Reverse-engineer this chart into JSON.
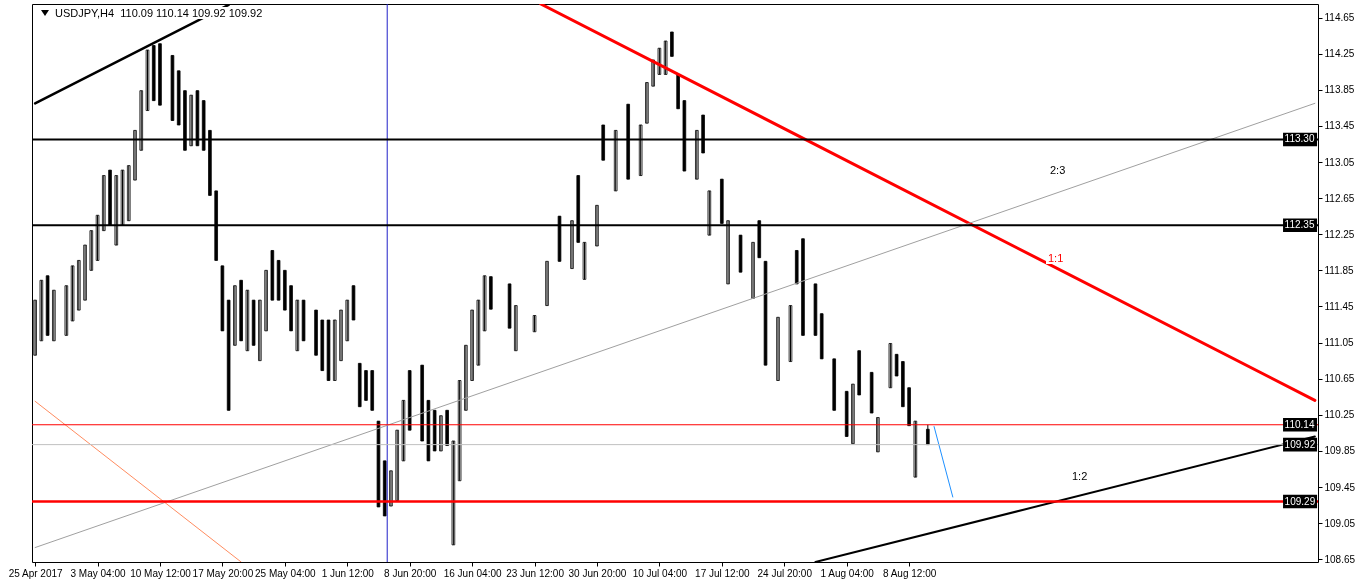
{
  "chart_data": {
    "type": "candlestick",
    "title": "USDJPY,H4  110.09 110.14 109.92 109.92",
    "color": "#000000",
    "categories": [
      "25 Apr 2017",
      null,
      null,
      null,
      null,
      null,
      null,
      null,
      null,
      null,
      "3 May 04:00",
      null,
      null,
      null,
      null,
      null,
      null,
      null,
      null,
      null,
      "10 May 12:00",
      null,
      null,
      null,
      null,
      null,
      null,
      null,
      null,
      null,
      "17 May 20:00",
      null,
      null,
      null,
      null,
      null,
      null,
      null,
      null,
      null,
      "25 May 04:00",
      null,
      null,
      null,
      null,
      null,
      null,
      null,
      null,
      null,
      "1 Jun 12:00",
      null,
      null,
      null,
      null,
      null,
      null,
      null,
      null,
      null,
      "8 Jun 20:00",
      null,
      null,
      null,
      null,
      null,
      null,
      null,
      null,
      null,
      "16 Jun 04:00",
      null,
      null,
      null,
      null,
      null,
      null,
      null,
      null,
      null,
      "23 Jun 12:00",
      null,
      null,
      null,
      null,
      null,
      null,
      null,
      null,
      null,
      "30 Jun 20:00",
      null,
      null,
      null,
      null,
      null,
      null,
      null,
      null,
      null,
      "10 Jul 04:00",
      null,
      null,
      null,
      null,
      null,
      null,
      null,
      null,
      null,
      "17 Jul 12:00",
      null,
      null,
      null,
      null,
      null,
      null,
      null,
      null,
      null,
      "24 Jul 20:00",
      null,
      null,
      null,
      null,
      null,
      null,
      null,
      null,
      null,
      "1 Aug 04:00",
      null,
      null,
      null,
      null,
      null,
      null,
      null,
      null,
      null,
      "8 Aug 12:00",
      null,
      null,
      null,
      null,
      null,
      null,
      null,
      null,
      null,
      null,
      null,
      null,
      null,
      null,
      null,
      null,
      null,
      null,
      null,
      null,
      null,
      null,
      null,
      null,
      null,
      null,
      null,
      null,
      null,
      null,
      null,
      null,
      null,
      null,
      null,
      null,
      null,
      null,
      null,
      null,
      null,
      null,
      null,
      null,
      null,
      null,
      null,
      null,
      null,
      null,
      null,
      null,
      null,
      null,
      null,
      null,
      null,
      null,
      null,
      null,
      null,
      null,
      null,
      null,
      null
    ],
    "ohlc": [
      [
        110.91,
        111.52,
        110.91,
        111.52
      ],
      [
        111.07,
        111.74,
        111.07,
        111.74
      ],
      [
        111.79,
        111.79,
        111.13,
        111.13
      ],
      [
        111.07,
        111.63,
        111.07,
        111.63
      ],
      null,
      [
        111.13,
        111.68,
        111.13,
        111.68
      ],
      [
        111.29,
        111.9,
        111.29,
        111.9
      ],
      [
        111.41,
        111.96,
        111.41,
        111.96
      ],
      [
        111.52,
        112.13,
        111.52,
        112.13
      ],
      [
        111.85,
        112.29,
        111.85,
        112.29
      ],
      [
        111.96,
        112.46,
        111.96,
        112.46
      ],
      [
        112.29,
        112.9,
        112.29,
        112.9
      ],
      [
        112.96,
        112.96,
        112.35,
        112.35
      ],
      [
        112.13,
        112.9,
        112.13,
        112.9
      ],
      [
        112.35,
        112.96,
        112.35,
        112.96
      ],
      [
        112.4,
        113.01,
        112.4,
        113.01
      ],
      [
        112.85,
        113.4,
        112.85,
        113.4
      ],
      [
        113.18,
        113.84,
        113.18,
        113.84
      ],
      [
        113.62,
        114.29,
        113.62,
        114.29
      ],
      [
        114.34,
        114.34,
        113.73,
        113.73
      ],
      [
        114.36,
        114.36,
        113.68,
        113.68
      ],
      null,
      [
        114.23,
        114.23,
        113.51,
        113.51
      ],
      [
        114.06,
        114.06,
        113.46,
        113.46
      ],
      [
        113.84,
        113.84,
        113.18,
        113.18
      ],
      [
        113.23,
        113.79,
        113.23,
        113.79
      ],
      [
        113.84,
        113.84,
        113.23,
        113.23
      ],
      [
        113.73,
        113.73,
        113.18,
        113.18
      ],
      [
        113.4,
        113.4,
        112.68,
        112.68
      ],
      [
        112.73,
        112.73,
        111.96,
        111.96
      ],
      [
        111.9,
        111.9,
        111.18,
        111.18
      ],
      [
        111.52,
        111.52,
        110.3,
        110.3
      ],
      [
        111.02,
        111.68,
        111.02,
        111.68
      ],
      [
        111.74,
        111.74,
        111.07,
        111.07
      ],
      [
        110.96,
        111.63,
        110.96,
        111.63
      ],
      [
        111.52,
        111.52,
        111.02,
        111.02
      ],
      [
        110.85,
        111.52,
        110.85,
        111.52
      ],
      [
        111.18,
        111.85,
        111.18,
        111.85
      ],
      [
        112.07,
        112.07,
        111.52,
        111.52
      ],
      [
        111.96,
        111.96,
        111.52,
        111.52
      ],
      [
        111.85,
        111.85,
        111.41,
        111.41
      ],
      [
        111.68,
        111.68,
        111.18,
        111.18
      ],
      [
        110.96,
        111.52,
        110.96,
        111.52
      ],
      [
        111.52,
        111.52,
        111.07,
        111.07
      ],
      null,
      [
        111.41,
        111.41,
        110.91,
        110.91
      ],
      [
        111.3,
        111.3,
        110.74,
        110.74
      ],
      [
        111.3,
        111.3,
        110.63,
        110.63
      ],
      [
        110.63,
        111.3,
        110.63,
        111.3
      ],
      [
        110.85,
        111.41,
        110.85,
        111.41
      ],
      [
        111.07,
        111.52,
        111.07,
        111.52
      ],
      [
        111.68,
        111.68,
        111.3,
        111.3
      ],
      [
        110.82,
        110.82,
        110.34,
        110.34
      ],
      [
        110.74,
        110.74,
        110.41,
        110.41
      ],
      [
        110.74,
        110.74,
        110.3,
        110.3
      ],
      [
        110.18,
        110.18,
        109.23,
        109.23
      ],
      [
        109.74,
        109.74,
        109.13,
        109.13
      ],
      [
        109.24,
        109.63,
        109.24,
        109.63
      ],
      [
        109.3,
        110.08,
        109.3,
        110.08
      ],
      [
        109.74,
        110.41,
        109.74,
        110.41
      ],
      [
        110.74,
        110.74,
        110.08,
        110.08
      ],
      null,
      [
        110.8,
        110.8,
        109.96,
        109.96
      ],
      [
        110.41,
        110.41,
        109.74,
        109.74
      ],
      [
        110.3,
        110.3,
        109.85,
        109.85
      ],
      [
        109.85,
        110.24,
        109.85,
        110.24
      ],
      [
        110.3,
        110.3,
        109.91,
        109.91
      ],
      [
        108.81,
        109.96,
        108.81,
        109.96
      ],
      [
        109.52,
        110.63,
        109.52,
        110.63
      ],
      [
        110.3,
        111.02,
        110.3,
        111.02
      ],
      [
        110.63,
        111.41,
        110.63,
        111.41
      ],
      [
        110.8,
        111.52,
        110.8,
        111.52
      ],
      [
        111.18,
        111.79,
        111.18,
        111.79
      ],
      [
        111.78,
        111.78,
        111.42,
        111.42
      ],
      null,
      null,
      [
        111.7,
        111.7,
        111.21,
        111.21
      ],
      [
        110.96,
        111.46,
        110.96,
        111.46
      ],
      null,
      null,
      [
        111.17,
        111.35,
        111.17,
        111.35
      ],
      null,
      [
        111.46,
        111.95,
        111.46,
        111.95
      ],
      null,
      [
        112.45,
        112.45,
        111.95,
        111.95
      ],
      null,
      [
        111.87,
        112.4,
        111.87,
        112.4
      ],
      [
        112.9,
        112.9,
        112.16,
        112.16
      ],
      [
        111.75,
        112.16,
        111.75,
        112.16
      ],
      null,
      [
        112.12,
        112.57,
        112.12,
        112.57
      ],
      [
        113.46,
        113.46,
        113.07,
        113.07
      ],
      null,
      [
        112.73,
        113.4,
        112.73,
        113.4
      ],
      null,
      [
        113.69,
        113.69,
        112.86,
        112.86
      ],
      null,
      [
        112.9,
        113.46,
        112.9,
        113.46
      ],
      [
        113.48,
        113.93,
        113.48,
        113.93
      ],
      [
        113.89,
        114.18,
        113.89,
        114.18
      ],
      [
        114.02,
        114.31,
        114.02,
        114.31
      ],
      [
        114.02,
        114.39,
        114.02,
        114.39
      ],
      [
        114.49,
        114.49,
        114.22,
        114.22
      ],
      [
        114.02,
        114.02,
        113.64,
        113.64
      ],
      [
        113.73,
        113.73,
        112.95,
        112.95
      ],
      null,
      [
        112.86,
        113.4,
        112.86,
        113.4
      ],
      [
        113.57,
        113.57,
        113.15,
        113.15
      ],
      [
        112.24,
        112.73,
        112.24,
        112.73
      ],
      null,
      [
        112.86,
        112.86,
        112.37,
        112.37
      ],
      [
        111.7,
        112.4,
        111.7,
        112.4
      ],
      null,
      [
        112.24,
        112.24,
        111.83,
        111.83
      ],
      null,
      [
        111.54,
        112.16,
        111.54,
        112.16
      ],
      [
        112.4,
        112.4,
        111.99,
        111.99
      ],
      [
        111.95,
        111.95,
        110.8,
        110.8
      ],
      null,
      [
        110.63,
        111.33,
        110.63,
        111.33
      ],
      null,
      [
        110.84,
        111.46,
        110.84,
        111.46
      ],
      [
        112.07,
        112.07,
        111.7,
        111.7
      ],
      [
        112.2,
        112.2,
        111.13,
        111.13
      ],
      null,
      [
        111.7,
        111.7,
        111.13,
        111.13
      ],
      [
        111.37,
        111.37,
        110.87,
        110.87
      ],
      null,
      [
        110.87,
        110.87,
        110.3,
        110.3
      ],
      null,
      [
        110.51,
        110.51,
        110.01,
        110.01
      ],
      [
        109.93,
        110.59,
        109.93,
        110.59
      ],
      [
        110.96,
        110.96,
        110.47,
        110.47
      ],
      null,
      [
        110.72,
        110.72,
        110.27,
        110.27
      ],
      [
        109.84,
        110.22,
        109.84,
        110.22
      ],
      null,
      [
        110.55,
        111.04,
        110.55,
        111.04
      ],
      [
        110.92,
        110.92,
        110.68,
        110.68
      ],
      [
        110.84,
        110.84,
        110.34,
        110.34
      ],
      [
        110.55,
        110.55,
        110.13,
        110.13
      ],
      [
        109.56,
        110.18,
        109.56,
        110.18
      ],
      null,
      [
        110.09,
        110.14,
        109.92,
        109.92
      ],
      null,
      null,
      null,
      null,
      null,
      null,
      null,
      null,
      null,
      null,
      null,
      null,
      null,
      null,
      null,
      null,
      null,
      null,
      null,
      null,
      null,
      null,
      null,
      null,
      null,
      null,
      null,
      null,
      null,
      null,
      null,
      null,
      null,
      null,
      null,
      null,
      null,
      null,
      null,
      null,
      null,
      null,
      null,
      null,
      null,
      null,
      null,
      null,
      null,
      null,
      null,
      null,
      null,
      null,
      null,
      null,
      null,
      null,
      null,
      null,
      null,
      null
    ],
    "series": [
      {
        "type": "line",
        "color": "#000000",
        "values": [
          113.7,
          null,
          null,
          null,
          null,
          null,
          null,
          null,
          null,
          null,
          null,
          null,
          null,
          null,
          null,
          null,
          null,
          null,
          null,
          null,
          null,
          null,
          null,
          null,
          null,
          null,
          null,
          null,
          null,
          null,
          null,
          114.79,
          null,
          null,
          null,
          null,
          null,
          null,
          null,
          null,
          null,
          null,
          null,
          null,
          null,
          null,
          null,
          null,
          null,
          null,
          null,
          null,
          null,
          null,
          null,
          null,
          null,
          null,
          null,
          null,
          null,
          null,
          null,
          null,
          null,
          null,
          null,
          null,
          null,
          null,
          null,
          null,
          null,
          null,
          null,
          null,
          null,
          null,
          null,
          null,
          null,
          null,
          null,
          null,
          null,
          null,
          null,
          null,
          null,
          null,
          null,
          null,
          null,
          null,
          null,
          null,
          null,
          null,
          null,
          null,
          null,
          null,
          null,
          null,
          null,
          null,
          null,
          null,
          null,
          null,
          null,
          null,
          null,
          null,
          null,
          null,
          null,
          null,
          null,
          null,
          null,
          null,
          null,
          null,
          null,
          null,
          null,
          null,
          null,
          null,
          null,
          null,
          null,
          null,
          null,
          null,
          null,
          null,
          null,
          null,
          null,
          null,
          null,
          null,
          null,
          null,
          null,
          null,
          null,
          null,
          null,
          null,
          null,
          null,
          null,
          null,
          null,
          null,
          null,
          null,
          null,
          null,
          null,
          null,
          null,
          null,
          null,
          null,
          null,
          null,
          null,
          null,
          null,
          null,
          null,
          null,
          null,
          null,
          null,
          null,
          null,
          null,
          null,
          null,
          null,
          null,
          null,
          null,
          null,
          null,
          null,
          null,
          null,
          null,
          null,
          null,
          null,
          null,
          null,
          null,
          null,
          null,
          null,
          null,
          null,
          null
        ]
      },
      {
        "type": "line",
        "color": "#ff0000",
        "values": [
          null,
          null,
          null,
          null,
          null,
          null,
          null,
          null,
          null,
          null,
          null,
          null,
          null,
          null,
          null,
          null,
          null,
          null,
          null,
          null,
          null,
          null,
          null,
          null,
          null,
          null,
          null,
          null,
          null,
          null,
          null,
          null,
          null,
          null,
          null,
          null,
          null,
          null,
          null,
          null,
          null,
          null,
          null,
          null,
          null,
          null,
          null,
          null,
          null,
          null,
          null,
          null,
          null,
          null,
          null,
          null,
          null,
          null,
          null,
          null,
          null,
          null,
          null,
          null,
          null,
          null,
          null,
          null,
          null,
          null,
          null,
          null,
          null,
          null,
          null,
          null,
          null,
          null,
          null,
          null,
          null,
          114.8,
          null,
          null,
          null,
          null,
          null,
          null,
          null,
          null,
          null,
          null,
          null,
          null,
          null,
          null,
          null,
          null,
          null,
          null,
          null,
          null,
          null,
          null,
          null,
          null,
          null,
          null,
          null,
          null,
          null,
          null,
          null,
          null,
          null,
          null,
          null,
          null,
          null,
          null,
          null,
          null,
          null,
          null,
          null,
          null,
          null,
          null,
          null,
          null,
          null,
          null,
          null,
          null,
          null,
          null,
          null,
          null,
          null,
          null,
          null,
          null,
          null,
          null,
          null,
          null,
          null,
          null,
          null,
          null,
          null,
          null,
          null,
          null,
          null,
          null,
          null,
          null,
          null,
          null,
          null,
          null,
          null,
          null,
          null,
          null,
          null,
          null,
          null,
          null,
          null,
          null,
          null,
          null,
          null,
          null,
          null,
          null,
          null,
          null,
          null,
          null,
          null,
          null,
          null,
          null,
          null,
          null,
          null,
          null,
          null,
          null,
          null,
          null,
          null,
          null,
          null,
          null,
          null,
          null,
          null,
          null,
          null,
          null,
          null,
          110.41
        ]
      },
      {
        "type": "line",
        "color": "#a0a0a0",
        "values": [
          108.78,
          null,
          null,
          null,
          null,
          null,
          null,
          null,
          null,
          null,
          null,
          null,
          null,
          null,
          null,
          null,
          null,
          null,
          null,
          null,
          null,
          null,
          null,
          null,
          null,
          null,
          null,
          null,
          null,
          null,
          null,
          null,
          null,
          null,
          null,
          null,
          null,
          null,
          null,
          null,
          null,
          null,
          null,
          null,
          null,
          null,
          null,
          null,
          null,
          null,
          null,
          null,
          null,
          null,
          null,
          null,
          null,
          null,
          null,
          null,
          null,
          null,
          null,
          null,
          null,
          null,
          null,
          null,
          null,
          null,
          null,
          null,
          null,
          null,
          null,
          null,
          null,
          null,
          null,
          null,
          null,
          null,
          null,
          null,
          null,
          null,
          null,
          null,
          null,
          null,
          null,
          null,
          null,
          null,
          null,
          null,
          null,
          null,
          null,
          null,
          null,
          null,
          null,
          null,
          null,
          null,
          null,
          null,
          null,
          null,
          null,
          null,
          null,
          null,
          null,
          null,
          null,
          null,
          null,
          null,
          null,
          null,
          null,
          null,
          null,
          null,
          null,
          null,
          null,
          null,
          null,
          null,
          null,
          null,
          null,
          null,
          null,
          null,
          null,
          null,
          null,
          null,
          null,
          null,
          null,
          null,
          null,
          null,
          null,
          null,
          null,
          null,
          null,
          null,
          null,
          null,
          null,
          null,
          null,
          null,
          null,
          null,
          null,
          null,
          null,
          null,
          null,
          null,
          null,
          null,
          null,
          null,
          null,
          null,
          null,
          null,
          null,
          null,
          null,
          null,
          null,
          null,
          null,
          null,
          null,
          null,
          null,
          null,
          null,
          null,
          null,
          null,
          null,
          null,
          null,
          null,
          null,
          null,
          null,
          null,
          null,
          null,
          null,
          null,
          null,
          113.7
        ]
      },
      {
        "type": "line",
        "color": "#ff8c60",
        "values": [
          110.4,
          null,
          null,
          null,
          null,
          null,
          null,
          null,
          null,
          null,
          null,
          null,
          null,
          null,
          null,
          null,
          null,
          null,
          null,
          null,
          null,
          null,
          null,
          null,
          null,
          null,
          null,
          null,
          null,
          null,
          null,
          null,
          null,
          108.62,
          null,
          null,
          null,
          null,
          null,
          null,
          null,
          null,
          null,
          null,
          null,
          null,
          null,
          null,
          null,
          null,
          null,
          null,
          null,
          null,
          null,
          null,
          null,
          null,
          null,
          null,
          null,
          null,
          null,
          null,
          null,
          null,
          null,
          null,
          null,
          null,
          null,
          null,
          null,
          null,
          null,
          null,
          null,
          null,
          null,
          null,
          null,
          null,
          null,
          null,
          null,
          null,
          null,
          null,
          null,
          null,
          null,
          null,
          null,
          null,
          null,
          null,
          null,
          null,
          null,
          null,
          null,
          null,
          null,
          null,
          null,
          null,
          null,
          null,
          null,
          null,
          null,
          null,
          null,
          null,
          null,
          null,
          null,
          null,
          null,
          null,
          null,
          null,
          null,
          null,
          null,
          null,
          null,
          null,
          null,
          null,
          null,
          null,
          null,
          null,
          null,
          null,
          null,
          null,
          null,
          null,
          null,
          null,
          null,
          null,
          null,
          null,
          null,
          null,
          null,
          null,
          null,
          null,
          null,
          null,
          null,
          null,
          null,
          null,
          null,
          null,
          null,
          null,
          null,
          null,
          null,
          null,
          null,
          null,
          null,
          null,
          null,
          null,
          null,
          null,
          null,
          null,
          null,
          null,
          null,
          null,
          null,
          null,
          null,
          null,
          null,
          null,
          null,
          null,
          null,
          null,
          null,
          null,
          null,
          null,
          null,
          null,
          null,
          null,
          null,
          null,
          null,
          null,
          null,
          null,
          null,
          null
        ]
      },
      {
        "type": "line",
        "color": "#000000",
        "values": [
          null,
          null,
          null,
          null,
          null,
          null,
          null,
          null,
          null,
          null,
          null,
          null,
          null,
          null,
          null,
          null,
          null,
          null,
          null,
          null,
          null,
          null,
          null,
          null,
          null,
          null,
          null,
          null,
          null,
          null,
          null,
          null,
          null,
          null,
          null,
          null,
          null,
          null,
          null,
          null,
          null,
          null,
          null,
          null,
          null,
          null,
          null,
          null,
          null,
          null,
          null,
          null,
          null,
          null,
          null,
          null,
          null,
          null,
          null,
          null,
          null,
          null,
          null,
          null,
          null,
          null,
          null,
          null,
          null,
          null,
          null,
          null,
          null,
          null,
          null,
          null,
          null,
          null,
          null,
          null,
          null,
          null,
          null,
          null,
          null,
          null,
          null,
          null,
          null,
          null,
          null,
          null,
          null,
          null,
          null,
          null,
          null,
          null,
          null,
          null,
          null,
          null,
          null,
          null,
          null,
          null,
          null,
          null,
          null,
          null,
          null,
          null,
          null,
          null,
          null,
          null,
          null,
          null,
          null,
          null,
          null,
          null,
          null,
          null,
          null,
          108.62,
          null,
          null,
          null,
          null,
          null,
          null,
          null,
          null,
          null,
          null,
          null,
          null,
          null,
          null,
          null,
          null,
          null,
          null,
          null,
          null,
          null,
          null,
          null,
          null,
          null,
          null,
          null,
          null,
          null,
          null,
          null,
          null,
          null,
          null,
          null,
          null,
          null,
          null,
          null,
          null,
          null,
          null,
          null,
          null,
          null,
          null,
          null,
          null,
          null,
          null,
          null,
          null,
          null,
          null,
          null,
          null,
          null,
          null,
          null,
          null,
          null,
          null,
          null,
          null,
          null,
          null,
          null,
          null,
          null,
          null,
          null,
          null,
          null,
          null,
          null,
          null,
          null,
          null,
          null,
          110.01
        ]
      },
      {
        "type": "line",
        "color": "#1e90ff",
        "values": [
          null,
          null,
          null,
          null,
          null,
          null,
          null,
          null,
          null,
          null,
          null,
          null,
          null,
          null,
          null,
          null,
          null,
          null,
          null,
          null,
          null,
          null,
          null,
          null,
          null,
          null,
          null,
          null,
          null,
          null,
          null,
          null,
          null,
          null,
          null,
          null,
          null,
          null,
          null,
          null,
          null,
          null,
          null,
          null,
          null,
          null,
          null,
          null,
          null,
          null,
          null,
          null,
          null,
          null,
          null,
          null,
          null,
          null,
          null,
          null,
          null,
          null,
          null,
          null,
          null,
          null,
          null,
          null,
          null,
          null,
          null,
          null,
          null,
          null,
          null,
          null,
          null,
          null,
          null,
          null,
          null,
          null,
          null,
          null,
          null,
          null,
          null,
          null,
          null,
          null,
          null,
          null,
          null,
          null,
          null,
          null,
          null,
          null,
          null,
          null,
          null,
          null,
          null,
          null,
          null,
          null,
          null,
          null,
          null,
          null,
          null,
          null,
          null,
          null,
          null,
          null,
          null,
          null,
          null,
          null,
          null,
          null,
          null,
          null,
          null,
          null,
          null,
          null,
          null,
          null,
          null,
          null,
          null,
          null,
          null,
          null,
          null,
          null,
          null,
          null,
          null,
          null,
          null,
          null,
          110.12,
          null,
          null,
          109.34,
          null,
          null,
          null,
          null,
          null,
          null,
          null,
          null,
          null,
          null,
          null,
          null,
          null,
          null,
          null,
          null,
          null,
          null,
          null,
          null,
          null,
          null,
          null,
          null,
          null,
          null,
          null,
          null,
          null,
          null,
          null,
          null,
          null,
          null,
          null,
          null,
          null,
          null,
          null,
          null,
          null,
          null,
          null,
          null,
          null,
          null,
          null,
          null,
          null,
          null,
          null,
          null,
          null,
          null,
          null,
          null,
          null,
          null
        ]
      }
    ],
    "ref_lines": [
      {
        "axis": "y",
        "value": 113.3,
        "label": "113.30",
        "color": "#000000"
      },
      {
        "axis": "y",
        "value": 112.35,
        "label": "112.35",
        "color": "#000000"
      },
      {
        "axis": "y",
        "value": 110.14,
        "label": "110.14",
        "color": "#ff0000"
      },
      {
        "axis": "y",
        "value": 109.92,
        "label": "109.92",
        "color": "#c0c0c0"
      },
      {
        "axis": "y",
        "value": 109.29,
        "label": "109.29",
        "color": "#ff0000"
      }
    ],
    "annotations": [
      "2:3",
      "1:1",
      "1:2"
    ],
    "ylim": [
      108.62,
      114.8
    ],
    "yticks": [
      114.65,
      114.25,
      113.85,
      113.45,
      113.05,
      112.65,
      112.25,
      111.85,
      111.45,
      111.05,
      110.65,
      110.25,
      109.85,
      109.45,
      109.05,
      108.65
    ]
  }
}
